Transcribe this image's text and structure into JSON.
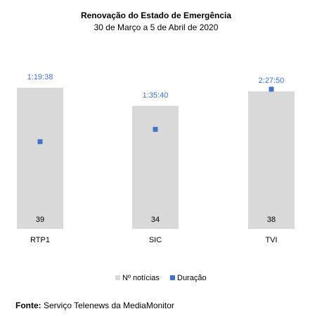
{
  "chart_data": {
    "type": "bar",
    "title": "Renovação do Estado de Emergência",
    "subtitle": "30 de Março a 5 de Abril de 2020",
    "categories": [
      "RTP1",
      "SIC",
      "TVI"
    ],
    "series": [
      {
        "name": "Nº notícias",
        "type": "bar",
        "values": [
          39,
          34,
          38
        ]
      },
      {
        "name": "Duração",
        "type": "point",
        "values": [
          "1:19:38",
          "1:35:40",
          "2:27:50"
        ],
        "seconds": [
          4778,
          5740,
          8870
        ]
      }
    ],
    "colors": {
      "bar": "#d9d9d9",
      "point": "#4472c4",
      "duration_label": "#4472c4"
    },
    "legend_position": "bottom",
    "grid": false
  },
  "source": {
    "label": "Fonte:",
    "text": "Serviço Telenews da MediaMonitor"
  }
}
